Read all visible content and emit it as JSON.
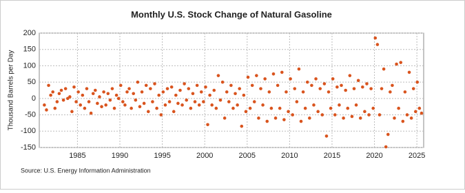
{
  "chart_data": {
    "type": "scatter",
    "title": "Monthly U.S. Stock Change of Natural Gasoline",
    "y_label": "Thousand Barrels per Day",
    "source": "Source: U.S. Energy Information Administration",
    "color": "#d9541e",
    "grid": true,
    "xlim": [
      1980.5,
      2025.8
    ],
    "xticks": [
      1985,
      1990,
      1995,
      2000,
      2005,
      2010,
      2015,
      2020,
      2025
    ],
    "ylim": [
      -150,
      200
    ],
    "yticks": [
      -150,
      -100,
      -50,
      0,
      50,
      100,
      150,
      200
    ],
    "x": [
      1981.1,
      1981.35,
      1981.6,
      1981.85,
      1982.1,
      1982.35,
      1982.6,
      1982.85,
      1983.1,
      1983.35,
      1983.6,
      1983.85,
      1984.1,
      1984.35,
      1984.6,
      1984.85,
      1985.1,
      1985.35,
      1985.6,
      1985.85,
      1986.1,
      1986.35,
      1986.6,
      1986.85,
      1987.1,
      1987.35,
      1987.6,
      1987.85,
      1988.1,
      1988.35,
      1988.6,
      1988.85,
      1989.1,
      1989.35,
      1989.6,
      1989.85,
      1990.1,
      1990.35,
      1990.6,
      1990.85,
      1991.1,
      1991.35,
      1991.6,
      1991.85,
      1992.1,
      1992.35,
      1992.6,
      1992.85,
      1993.1,
      1993.35,
      1993.6,
      1993.85,
      1994.1,
      1994.35,
      1994.6,
      1994.85,
      1995.1,
      1995.35,
      1995.6,
      1995.85,
      1996.1,
      1996.35,
      1996.6,
      1996.85,
      1997.1,
      1997.35,
      1997.6,
      1997.85,
      1998.1,
      1998.35,
      1998.6,
      1998.85,
      1999.1,
      1999.35,
      1999.6,
      1999.85,
      2000.1,
      2000.35,
      2000.6,
      2000.85,
      2001.1,
      2001.35,
      2001.6,
      2001.85,
      2002.1,
      2002.35,
      2002.6,
      2002.85,
      2003.1,
      2003.35,
      2003.6,
      2003.85,
      2004.1,
      2004.35,
      2004.6,
      2004.85,
      2005.1,
      2005.35,
      2005.6,
      2005.85,
      2006.1,
      2006.35,
      2006.6,
      2006.85,
      2007.1,
      2007.35,
      2007.6,
      2007.85,
      2008.1,
      2008.35,
      2008.6,
      2008.85,
      2009.1,
      2009.35,
      2009.6,
      2009.85,
      2010.1,
      2010.35,
      2010.6,
      2010.85,
      2011.1,
      2011.35,
      2011.6,
      2011.85,
      2012.1,
      2012.35,
      2012.6,
      2012.85,
      2013.1,
      2013.35,
      2013.6,
      2013.85,
      2014.1,
      2014.35,
      2014.6,
      2014.85,
      2015.1,
      2015.35,
      2015.6,
      2015.85,
      2016.1,
      2016.35,
      2016.6,
      2016.85,
      2017.1,
      2017.35,
      2017.6,
      2017.85,
      2018.1,
      2018.35,
      2018.6,
      2018.85,
      2019.1,
      2019.35,
      2019.6,
      2019.85,
      2020.1,
      2020.35,
      2020.6,
      2020.85,
      2021.1,
      2021.35,
      2021.6,
      2021.85,
      2022.1,
      2022.35,
      2022.6,
      2022.85,
      2023.1,
      2023.35,
      2023.6,
      2023.85,
      2024.1,
      2024.35,
      2024.6,
      2024.85,
      2025.05,
      2025.3,
      2025.55
    ],
    "values": [
      -20,
      -35,
      40,
      10,
      20,
      -30,
      -10,
      15,
      25,
      -5,
      30,
      0,
      5,
      -40,
      35,
      -10,
      20,
      -20,
      10,
      -30,
      30,
      -10,
      -45,
      15,
      25,
      -15,
      5,
      -25,
      20,
      -20,
      15,
      -5,
      30,
      -30,
      10,
      0,
      40,
      -10,
      -20,
      20,
      30,
      -30,
      15,
      -5,
      50,
      -25,
      20,
      -15,
      40,
      -40,
      30,
      -10,
      45,
      -30,
      10,
      -50,
      20,
      -20,
      30,
      -10,
      35,
      -40,
      10,
      -15,
      25,
      -20,
      45,
      -5,
      30,
      -30,
      15,
      -10,
      40,
      -20,
      20,
      -10,
      35,
      -80,
      10,
      -20,
      25,
      -30,
      70,
      -5,
      50,
      -60,
      20,
      -10,
      40,
      -30,
      15,
      -20,
      30,
      -85,
      10,
      -40,
      65,
      -30,
      40,
      -10,
      70,
      -60,
      30,
      -20,
      60,
      -70,
      20,
      -30,
      75,
      -60,
      40,
      -30,
      80,
      -65,
      20,
      -40,
      60,
      -50,
      30,
      -10,
      90,
      -70,
      20,
      -30,
      50,
      -60,
      40,
      -20,
      60,
      -40,
      30,
      -50,
      45,
      -115,
      20,
      -30,
      60,
      -50,
      35,
      -20,
      40,
      -60,
      25,
      -30,
      70,
      -55,
      30,
      -20,
      55,
      -60,
      35,
      -40,
      45,
      -50,
      30,
      -30,
      185,
      165,
      -50,
      30,
      90,
      -148,
      -110,
      20,
      40,
      -60,
      105,
      -30,
      110,
      -70,
      20,
      -50,
      80,
      -60,
      30,
      -40,
      50,
      -30,
      -45
    ]
  }
}
